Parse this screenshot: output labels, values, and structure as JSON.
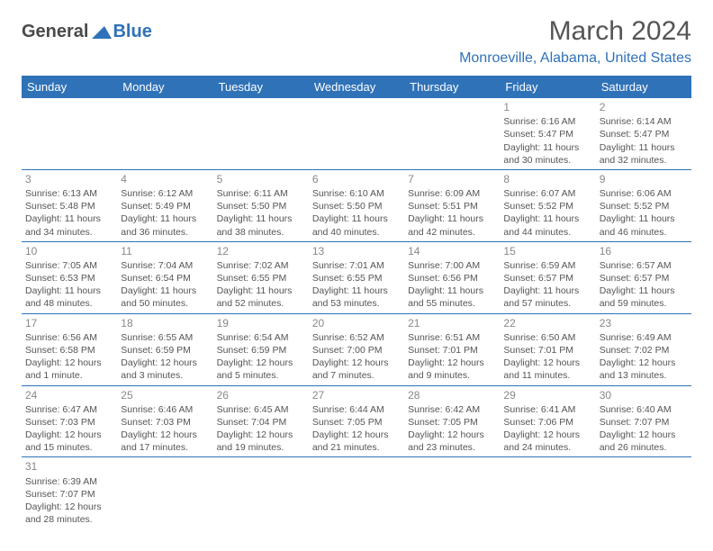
{
  "logo": {
    "partA": "General",
    "partB": "Blue"
  },
  "title": "March 2024",
  "location": "Monroeville, Alabama, United States",
  "colors": {
    "headerBg": "#2f72b8",
    "headerText": "#ffffff",
    "bodyText": "#555555",
    "dayNum": "#888888",
    "border": "#2f72b8",
    "logoDark": "#4a4a4a",
    "logoBlue": "#2f72b8"
  },
  "fonts": {
    "titleSize": 30,
    "locationSize": 16,
    "headerCellSize": 13,
    "cellSize": 10.5,
    "dayNumSize": 12
  },
  "dayHeaders": [
    "Sunday",
    "Monday",
    "Tuesday",
    "Wednesday",
    "Thursday",
    "Friday",
    "Saturday"
  ],
  "weeks": [
    [
      null,
      null,
      null,
      null,
      null,
      {
        "n": "1",
        "sr": "6:16 AM",
        "ss": "5:47 PM",
        "dl": "11 hours and 30 minutes."
      },
      {
        "n": "2",
        "sr": "6:14 AM",
        "ss": "5:47 PM",
        "dl": "11 hours and 32 minutes."
      }
    ],
    [
      {
        "n": "3",
        "sr": "6:13 AM",
        "ss": "5:48 PM",
        "dl": "11 hours and 34 minutes."
      },
      {
        "n": "4",
        "sr": "6:12 AM",
        "ss": "5:49 PM",
        "dl": "11 hours and 36 minutes."
      },
      {
        "n": "5",
        "sr": "6:11 AM",
        "ss": "5:50 PM",
        "dl": "11 hours and 38 minutes."
      },
      {
        "n": "6",
        "sr": "6:10 AM",
        "ss": "5:50 PM",
        "dl": "11 hours and 40 minutes."
      },
      {
        "n": "7",
        "sr": "6:09 AM",
        "ss": "5:51 PM",
        "dl": "11 hours and 42 minutes."
      },
      {
        "n": "8",
        "sr": "6:07 AM",
        "ss": "5:52 PM",
        "dl": "11 hours and 44 minutes."
      },
      {
        "n": "9",
        "sr": "6:06 AM",
        "ss": "5:52 PM",
        "dl": "11 hours and 46 minutes."
      }
    ],
    [
      {
        "n": "10",
        "sr": "7:05 AM",
        "ss": "6:53 PM",
        "dl": "11 hours and 48 minutes."
      },
      {
        "n": "11",
        "sr": "7:04 AM",
        "ss": "6:54 PM",
        "dl": "11 hours and 50 minutes."
      },
      {
        "n": "12",
        "sr": "7:02 AM",
        "ss": "6:55 PM",
        "dl": "11 hours and 52 minutes."
      },
      {
        "n": "13",
        "sr": "7:01 AM",
        "ss": "6:55 PM",
        "dl": "11 hours and 53 minutes."
      },
      {
        "n": "14",
        "sr": "7:00 AM",
        "ss": "6:56 PM",
        "dl": "11 hours and 55 minutes."
      },
      {
        "n": "15",
        "sr": "6:59 AM",
        "ss": "6:57 PM",
        "dl": "11 hours and 57 minutes."
      },
      {
        "n": "16",
        "sr": "6:57 AM",
        "ss": "6:57 PM",
        "dl": "11 hours and 59 minutes."
      }
    ],
    [
      {
        "n": "17",
        "sr": "6:56 AM",
        "ss": "6:58 PM",
        "dl": "12 hours and 1 minute."
      },
      {
        "n": "18",
        "sr": "6:55 AM",
        "ss": "6:59 PM",
        "dl": "12 hours and 3 minutes."
      },
      {
        "n": "19",
        "sr": "6:54 AM",
        "ss": "6:59 PM",
        "dl": "12 hours and 5 minutes."
      },
      {
        "n": "20",
        "sr": "6:52 AM",
        "ss": "7:00 PM",
        "dl": "12 hours and 7 minutes."
      },
      {
        "n": "21",
        "sr": "6:51 AM",
        "ss": "7:01 PM",
        "dl": "12 hours and 9 minutes."
      },
      {
        "n": "22",
        "sr": "6:50 AM",
        "ss": "7:01 PM",
        "dl": "12 hours and 11 minutes."
      },
      {
        "n": "23",
        "sr": "6:49 AM",
        "ss": "7:02 PM",
        "dl": "12 hours and 13 minutes."
      }
    ],
    [
      {
        "n": "24",
        "sr": "6:47 AM",
        "ss": "7:03 PM",
        "dl": "12 hours and 15 minutes."
      },
      {
        "n": "25",
        "sr": "6:46 AM",
        "ss": "7:03 PM",
        "dl": "12 hours and 17 minutes."
      },
      {
        "n": "26",
        "sr": "6:45 AM",
        "ss": "7:04 PM",
        "dl": "12 hours and 19 minutes."
      },
      {
        "n": "27",
        "sr": "6:44 AM",
        "ss": "7:05 PM",
        "dl": "12 hours and 21 minutes."
      },
      {
        "n": "28",
        "sr": "6:42 AM",
        "ss": "7:05 PM",
        "dl": "12 hours and 23 minutes."
      },
      {
        "n": "29",
        "sr": "6:41 AM",
        "ss": "7:06 PM",
        "dl": "12 hours and 24 minutes."
      },
      {
        "n": "30",
        "sr": "6:40 AM",
        "ss": "7:07 PM",
        "dl": "12 hours and 26 minutes."
      }
    ],
    [
      {
        "n": "31",
        "sr": "6:39 AM",
        "ss": "7:07 PM",
        "dl": "12 hours and 28 minutes."
      },
      null,
      null,
      null,
      null,
      null,
      null
    ]
  ],
  "labels": {
    "sunrise": "Sunrise: ",
    "sunset": "Sunset: ",
    "daylight": "Daylight: "
  }
}
